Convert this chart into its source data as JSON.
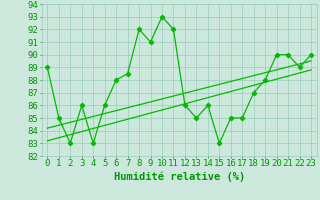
{
  "xlabel": "Humidité relative (%)",
  "xlim": [
    -0.5,
    23.5
  ],
  "ylim": [
    82,
    94
  ],
  "yticks": [
    82,
    83,
    84,
    85,
    86,
    87,
    88,
    89,
    90,
    91,
    92,
    93,
    94
  ],
  "xticks": [
    0,
    1,
    2,
    3,
    4,
    5,
    6,
    7,
    8,
    9,
    10,
    11,
    12,
    13,
    14,
    15,
    16,
    17,
    18,
    19,
    20,
    21,
    22,
    23
  ],
  "main_line_x": [
    0,
    1,
    2,
    3,
    4,
    5,
    6,
    7,
    8,
    9,
    10,
    11,
    12,
    13,
    14,
    15,
    16,
    17,
    18,
    19,
    20,
    21,
    22,
    23
  ],
  "main_line_y": [
    89,
    85,
    83,
    86,
    83,
    86,
    88,
    88.5,
    92,
    91,
    93,
    92,
    86,
    85,
    86,
    83,
    85,
    85,
    87,
    88,
    90,
    90,
    89,
    90
  ],
  "trend1_x": [
    0,
    23
  ],
  "trend1_y": [
    83.2,
    88.8
  ],
  "trend2_x": [
    0,
    23
  ],
  "trend2_y": [
    84.2,
    89.5
  ],
  "line_color": "#00bb00",
  "bg_color": "#cce8dc",
  "grid_color": "#99ccbb",
  "tick_color": "#009900",
  "xlabel_fontsize": 7.5,
  "tick_fontsize": 6.5
}
